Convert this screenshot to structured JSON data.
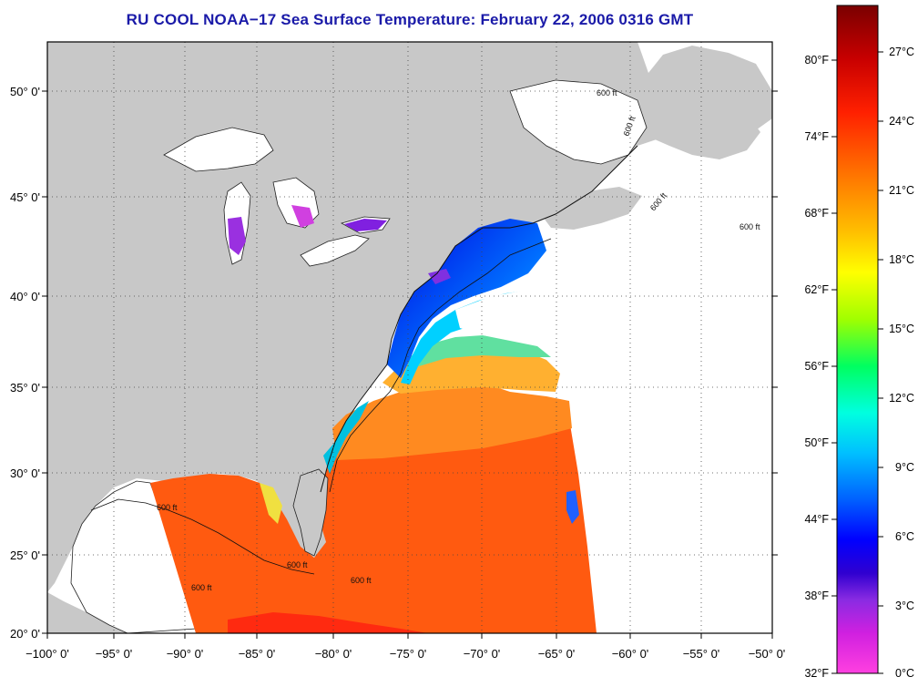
{
  "title": "RU COOL  NOAA−17  Sea Surface Temperature:  February 22, 2006 0316 GMT",
  "map": {
    "longitude_ticks": [
      "−100° 0'",
      "−95° 0'",
      "−90° 0'",
      "−85° 0'",
      "−80° 0'",
      "−75° 0'",
      "−70° 0'",
      "−65° 0'",
      "−60° 0'",
      "−55° 0'",
      "−50° 0'"
    ],
    "latitude_ticks": [
      "50° 0'",
      "45° 0'",
      "40° 0'",
      "35° 0'",
      "30° 0'",
      "25° 0'",
      "20° 0'"
    ],
    "lon_range": [
      -100,
      -50
    ],
    "lat_range": [
      20,
      52
    ],
    "grid": "dotted",
    "land_color": "#c8c8c8",
    "no_data_color": "#ffffff",
    "contour_labels": [
      "600 ft",
      "600 ft",
      "600 ft",
      "600 ft",
      "600 ft",
      "600 ft",
      "600 ft",
      "600 ft"
    ]
  },
  "colorbar": {
    "fahrenheit_labels": [
      "80°F",
      "74°F",
      "68°F",
      "62°F",
      "56°F",
      "50°F",
      "44°F",
      "38°F",
      "32°F"
    ],
    "celsius_labels": [
      "27°C",
      "24°C",
      "21°C",
      "18°C",
      "15°C",
      "12°C",
      "9°C",
      "6°C",
      "3°C",
      "0°C"
    ],
    "colors": [
      "#8b0000",
      "#ff0000",
      "#ff8c00",
      "#ffff00",
      "#00ff00",
      "#00ffff",
      "#0000ff",
      "#8a2be2",
      "#ff00ff"
    ]
  }
}
